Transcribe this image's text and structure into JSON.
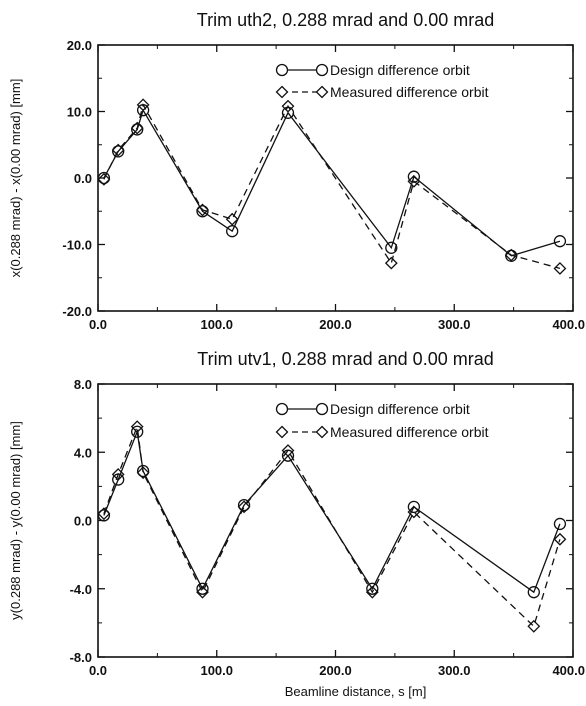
{
  "chart_data": [
    {
      "type": "line",
      "title": "Trim uth2, 0.288 mrad and 0.00 mrad",
      "xlabel": "",
      "ylabel": "x(0.288 mrad) - x(0.00 mrad) [mm]",
      "xlim": [
        0,
        400
      ],
      "ylim": [
        -20,
        20
      ],
      "grid": false,
      "legend_position": "top-right",
      "x_tick_values": [
        0,
        100,
        200,
        300,
        400
      ],
      "x_tick_labels": [
        "0.0",
        "100.0",
        "200.0",
        "300.0",
        "400.0"
      ],
      "y_tick_values": [
        20,
        10,
        0,
        -10,
        -20
      ],
      "y_tick_labels": [
        "20.0",
        "10.0",
        "0.0",
        "-10.0",
        "-20.0"
      ],
      "series": [
        {
          "name": "Design difference orbit",
          "style": "solid",
          "marker": "circle",
          "x": [
            5,
            17,
            33,
            38,
            88,
            113,
            160,
            247,
            266,
            348,
            389
          ],
          "y": [
            0.0,
            4.0,
            7.3,
            10.2,
            -5.0,
            -8.0,
            9.8,
            -10.5,
            0.2,
            -11.7,
            -9.5
          ]
        },
        {
          "name": "Measured difference orbit",
          "style": "dashed",
          "marker": "diamond",
          "x": [
            5,
            17,
            33,
            38,
            88,
            113,
            160,
            247,
            266,
            348,
            389
          ],
          "y": [
            -0.2,
            4.2,
            7.5,
            11.0,
            -4.8,
            -6.2,
            10.8,
            -12.8,
            -0.5,
            -11.6,
            -13.6
          ]
        }
      ]
    },
    {
      "type": "line",
      "title": "Trim utv1, 0.288 mrad and 0.00 mrad",
      "xlabel": "Beamline distance, s [m]",
      "ylabel": "y(0.288 mrad) - y(0.00 mrad) [mm]",
      "xlim": [
        0,
        400
      ],
      "ylim": [
        -8,
        8
      ],
      "grid": false,
      "legend_position": "top-right",
      "x_tick_values": [
        0,
        100,
        200,
        300,
        400
      ],
      "x_tick_labels": [
        "0.0",
        "100.0",
        "200.0",
        "300.0",
        "400.0"
      ],
      "y_tick_values": [
        8,
        4,
        0,
        -4,
        -8
      ],
      "y_tick_labels": [
        "8.0",
        "4.0",
        "0.0",
        "-4.0",
        "-8.0"
      ],
      "series": [
        {
          "name": "Design difference orbit",
          "style": "solid",
          "marker": "circle",
          "x": [
            5,
            17,
            33,
            38,
            88,
            123,
            160,
            231,
            266,
            367,
            389
          ],
          "y": [
            0.3,
            2.4,
            5.2,
            2.9,
            -4.0,
            0.9,
            3.8,
            -4.0,
            0.8,
            -4.2,
            -0.2
          ]
        },
        {
          "name": "Measured difference orbit",
          "style": "dashed",
          "marker": "diamond",
          "x": [
            5,
            17,
            33,
            38,
            88,
            123,
            160,
            231,
            266,
            367,
            389
          ],
          "y": [
            0.4,
            2.7,
            5.5,
            2.8,
            -4.2,
            0.8,
            4.1,
            -4.2,
            0.5,
            -6.2,
            -1.1
          ]
        }
      ]
    }
  ]
}
